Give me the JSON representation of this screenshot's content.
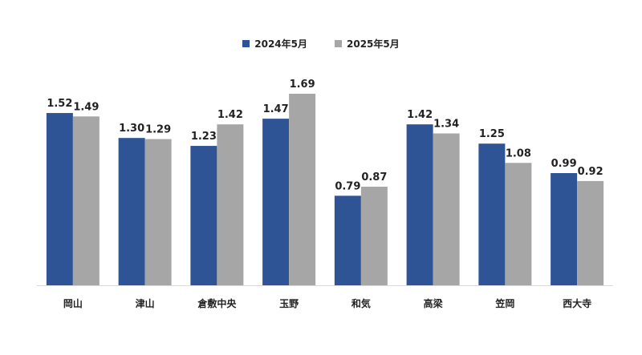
{
  "chart_data": {
    "type": "bar",
    "categories": [
      "岡山",
      "津山",
      "倉敷中央",
      "玉野",
      "和気",
      "高梁",
      "笠岡",
      "西大寺"
    ],
    "series": [
      {
        "name": "2024年5月",
        "values": [
          1.52,
          1.3,
          1.23,
          1.47,
          0.79,
          1.42,
          1.25,
          0.99
        ],
        "color": "#2F5496"
      },
      {
        "name": "2025年5月",
        "values": [
          1.49,
          1.29,
          1.42,
          1.69,
          0.87,
          1.34,
          1.08,
          0.92
        ],
        "color": "#A6A6A6"
      }
    ],
    "data_labels": [
      [
        "1.52",
        "1.30",
        "1.23",
        "1.47",
        "0.79",
        "1.42",
        "1.25",
        "0.99"
      ],
      [
        "1.49",
        "1.29",
        "1.42",
        "1.69",
        "0.87",
        "1.34",
        "1.08",
        "0.92"
      ]
    ],
    "title": "",
    "xlabel": "",
    "ylabel": "",
    "ylim": [
      0,
      1.69
    ],
    "grid": false,
    "legend_position": "top-center"
  }
}
